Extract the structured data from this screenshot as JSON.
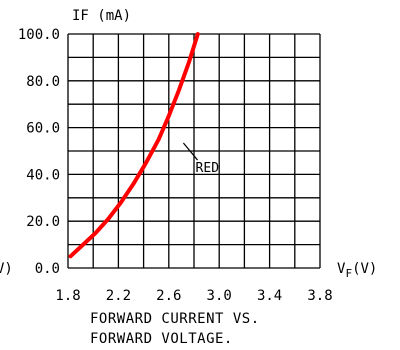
{
  "chart_data": {
    "type": "line",
    "y_axis_title": "IF  (mA)",
    "x_axis_title_base": "V",
    "x_axis_title_sub": "F",
    "x_axis_title_unit": "(V)",
    "left_clip_label": "V)",
    "caption_line1": "FORWARD  CURRENT  VS.",
    "caption_line2": "FORWARD  VOLTAGE.",
    "xlim": [
      1.8,
      3.8
    ],
    "ylim": [
      0,
      100
    ],
    "x_grid_step": 0.2,
    "y_grid_step": 10,
    "x_tick_labels": [
      "1.8",
      "2.2",
      "2.6",
      "3.0",
      "3.4",
      "3.8"
    ],
    "y_tick_labels": [
      "0.0",
      "20.0",
      "40.0",
      "60.0",
      "80.0",
      "100.0"
    ],
    "grid": true,
    "series": [
      {
        "name": "RED",
        "color": "#ff0000",
        "x": [
          1.82,
          1.92,
          2.02,
          2.12,
          2.22,
          2.32,
          2.42,
          2.52,
          2.6,
          2.68,
          2.76,
          2.83
        ],
        "y": [
          5,
          10,
          15,
          21,
          28,
          36,
          45,
          55,
          65,
          76,
          88,
          100
        ]
      }
    ],
    "annotation": {
      "text": "RED",
      "x": 2.86,
      "y": 41,
      "arrow_to": [
        2.7,
        56
      ]
    }
  }
}
